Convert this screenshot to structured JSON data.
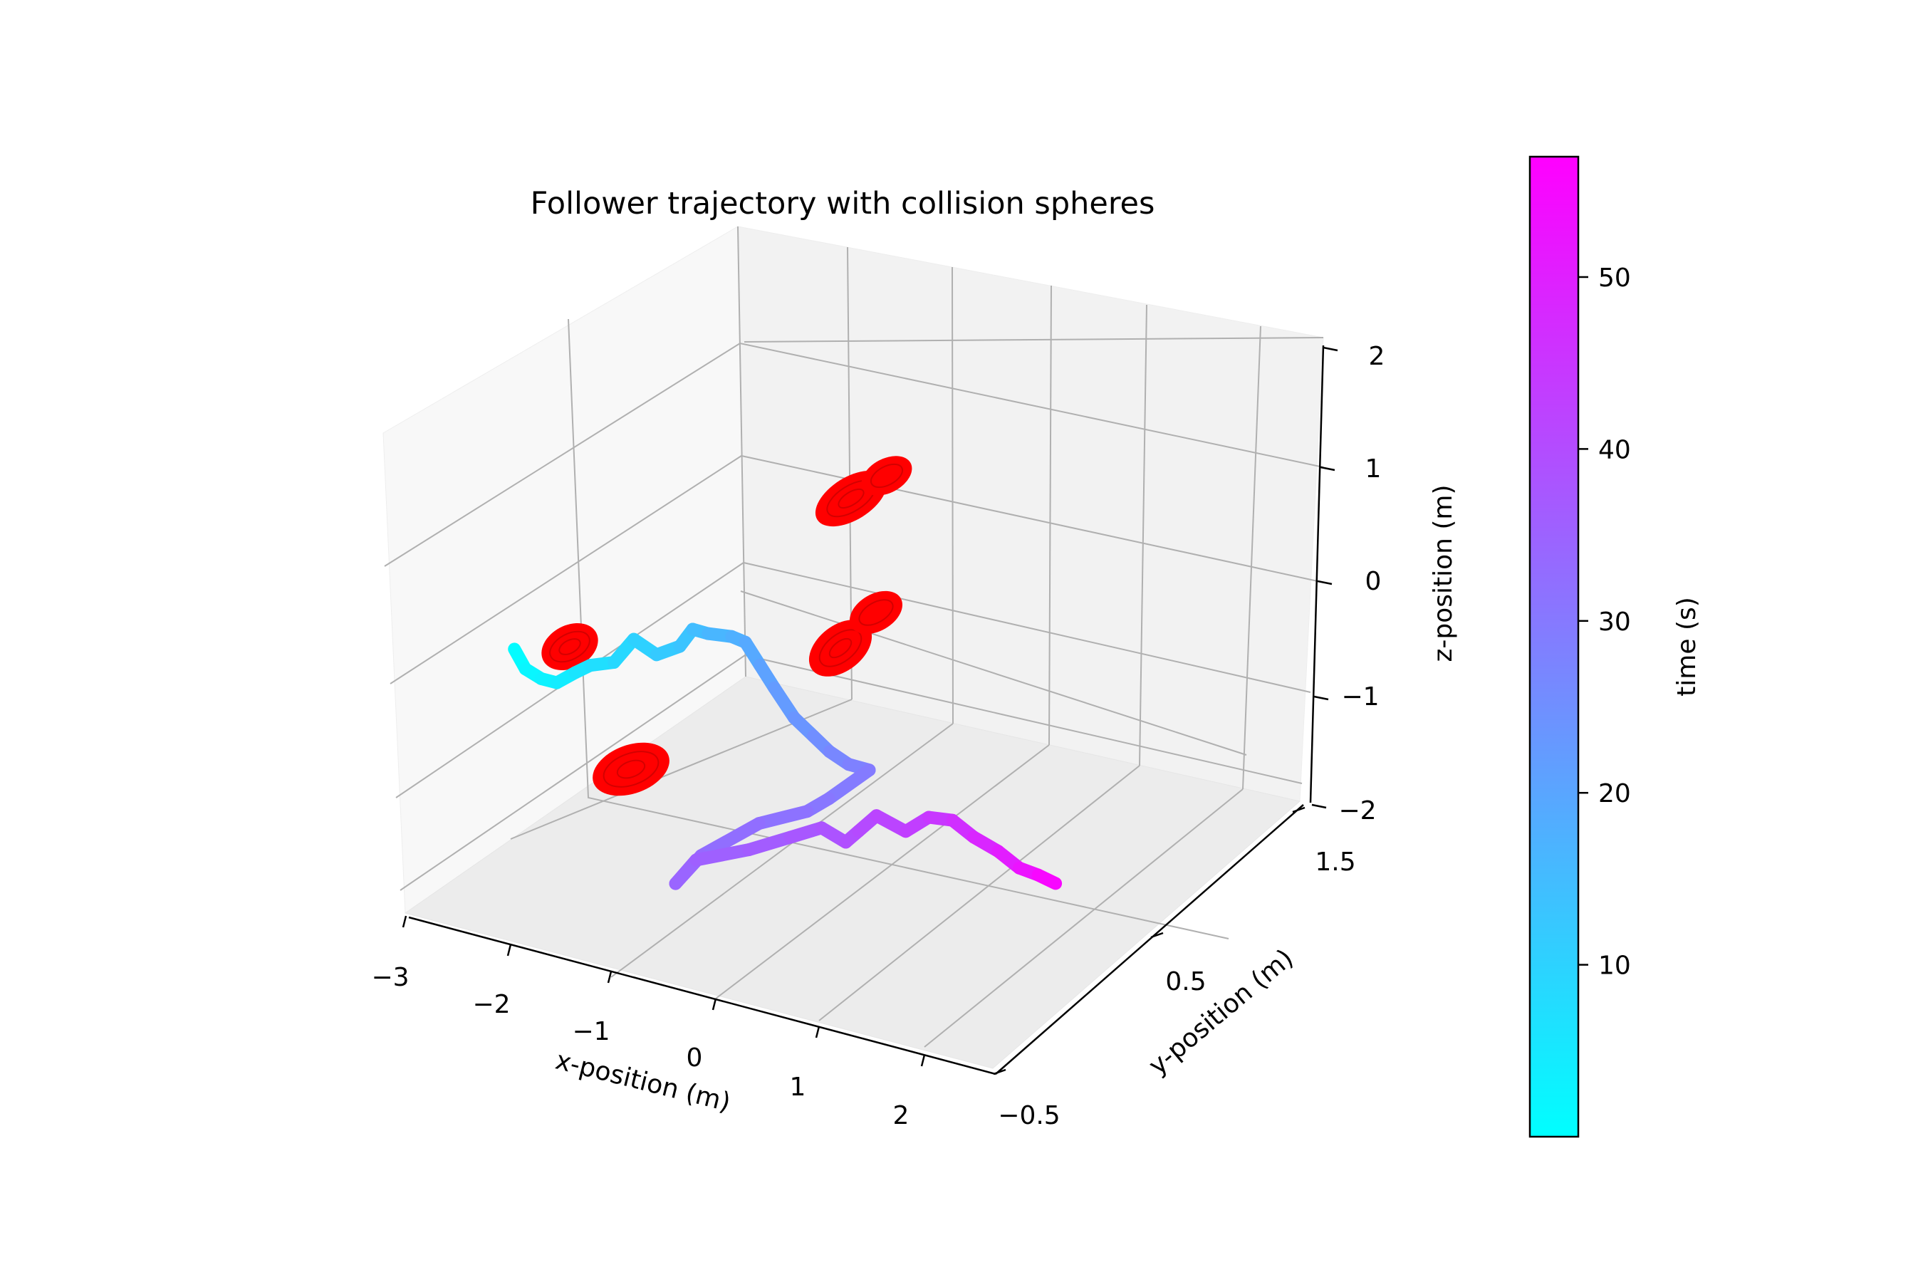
{
  "chart_data": {
    "type": "line",
    "title": "Follower trajectory with collision spheres",
    "xlabel": "x-position (m)",
    "ylabel": "y-position (m)",
    "zlabel": "z-position (m)",
    "xlim": [
      -3,
      2.6
    ],
    "ylim": [
      -0.5,
      1.7
    ],
    "zlim": [
      -2,
      2
    ],
    "x_ticks": [
      "−3",
      "−2",
      "−1",
      "0",
      "1",
      "2"
    ],
    "y_ticks": [
      "−0.5",
      "0.5",
      "1.5"
    ],
    "z_ticks": [
      "−2",
      "−1",
      "0",
      "1",
      "2"
    ],
    "grid": true,
    "series": [
      {
        "color_by": "time",
        "x": [
          -2.7,
          -2.6,
          -2.45,
          -2.3,
          -2.15,
          -2.0,
          -1.8,
          -1.6,
          -1.4,
          -1.25,
          -1.15,
          -1.05,
          -0.9,
          -0.8,
          -0.7,
          -0.6,
          -0.45,
          -0.3,
          -0.15,
          0.0,
          0.15,
          0.3,
          0.4,
          0.4,
          0.3,
          0.2,
          0.25,
          0.45,
          0.7,
          0.85,
          1.0,
          1.05,
          1.15,
          1.35,
          1.5,
          1.65,
          1.85,
          2.05,
          2.25,
          2.4,
          2.55
        ],
        "y": [
          0.4,
          0.4,
          0.4,
          0.4,
          0.42,
          0.42,
          0.44,
          0.44,
          0.45,
          0.5,
          0.52,
          0.55,
          0.6,
          0.62,
          0.64,
          0.66,
          0.68,
          0.7,
          0.7,
          0.72,
          0.75,
          0.4,
          0.2,
          -0.1,
          -0.4,
          -0.5,
          -0.4,
          -0.2,
          -0.1,
          0.0,
          0.05,
          0.1,
          0.15,
          0.2,
          0.25,
          0.3,
          0.3,
          0.32,
          0.32,
          0.34,
          0.35
        ],
        "z": [
          0.5,
          0.35,
          0.3,
          0.3,
          0.4,
          0.5,
          0.55,
          0.8,
          0.7,
          0.75,
          0.9,
          0.85,
          0.8,
          0.75,
          0.55,
          0.35,
          0.1,
          -0.05,
          -0.15,
          -0.25,
          -0.3,
          -0.1,
          0.05,
          0.3,
          0.35,
          0.2,
          0.3,
          0.2,
          0.25,
          0.25,
          0.1,
          0.15,
          0.25,
          0.1,
          0.2,
          0.15,
          0.05,
          -0.05,
          -0.15,
          -0.2,
          -0.25
        ],
        "t": [
          0.5,
          1.5,
          2.5,
          3.5,
          5,
          6.5,
          8,
          9.5,
          11,
          12.5,
          14,
          15.5,
          17,
          18.5,
          20,
          21.5,
          23,
          24.5,
          26,
          27.5,
          29,
          30,
          31,
          32,
          33,
          34,
          35,
          36,
          37,
          38,
          39,
          40,
          41,
          42.5,
          44,
          45.5,
          47.5,
          49.5,
          51.5,
          54,
          57
        ]
      }
    ],
    "spheres": {
      "color": "#ff0000",
      "centers": [
        [
          -1.85,
          0.1,
          -0.55
        ],
        [
          -2.1,
          -0.3,
          -1.5
        ],
        [
          0.25,
          0.75,
          0.5
        ],
        [
          0.3,
          0.3,
          -0.35
        ],
        [
          0.55,
          0.5,
          0.35
        ]
      ]
    },
    "colorbar": {
      "label": "time (s)",
      "min": 0,
      "max": 57,
      "ticks": [
        10,
        20,
        30,
        40,
        50
      ],
      "colormap": "cool",
      "color_low": "#00ffff",
      "color_high": "#ff00ff"
    }
  }
}
